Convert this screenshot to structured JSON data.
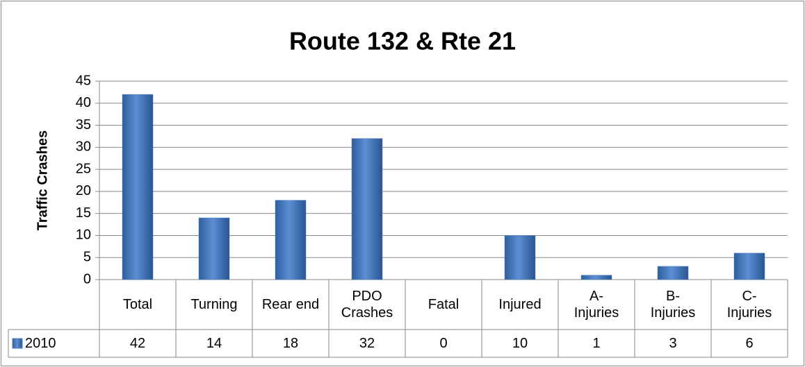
{
  "chart_data": {
    "type": "bar",
    "title": "Route 132 & Rte 21",
    "y_label": "Traffic Crashes",
    "categories": [
      "Total",
      "Turning",
      "Rear end",
      "PDO\nCrashes",
      "Fatal",
      "Injured",
      "A-\nInjuries",
      "B-\nInjuries",
      "C-\nInjuries"
    ],
    "series": [
      {
        "name": "2010",
        "color": "#4f81bd",
        "values": [
          42,
          14,
          18,
          32,
          0,
          10,
          1,
          3,
          6
        ]
      }
    ],
    "ylim": [
      0,
      45
    ],
    "yticks": [
      0,
      5,
      10,
      15,
      20,
      25,
      30,
      35,
      40,
      45
    ],
    "grid": true,
    "data_table": true
  }
}
